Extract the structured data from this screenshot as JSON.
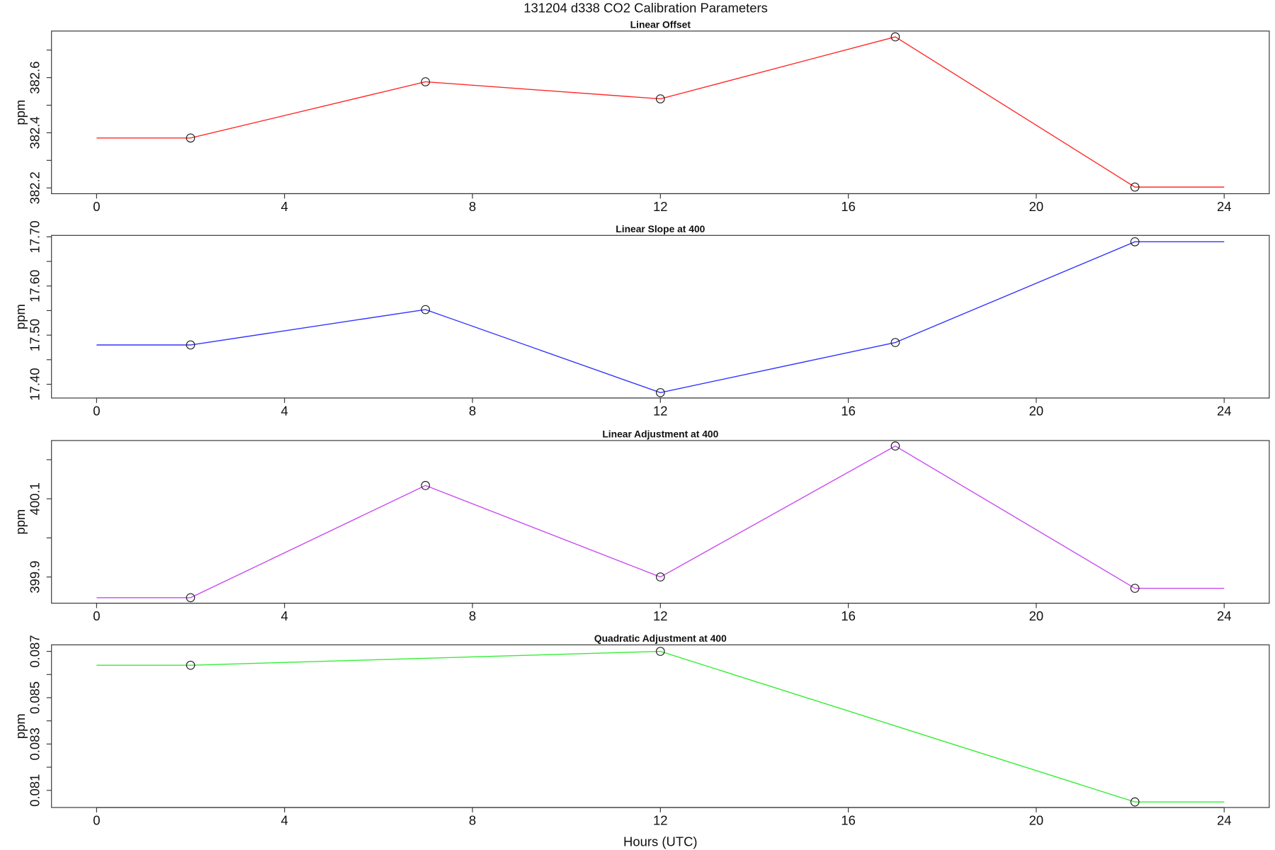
{
  "title": "131204   d338   CO2 Calibration Parameters",
  "chart_data": [
    {
      "type": "line",
      "title": "Linear Offset",
      "ylabel": "ppm",
      "x": [
        0,
        2,
        7,
        12,
        17,
        22.1,
        24
      ],
      "series": [
        {
          "color": "#ff2a2a",
          "values": [
            382.381,
            382.381,
            382.585,
            382.523,
            382.748,
            382.203,
            382.203
          ]
        }
      ],
      "xlim": [
        -0.96,
        24.96
      ],
      "xticks": [
        0,
        4,
        8,
        12,
        16,
        20,
        24
      ],
      "ylim": [
        382.179,
        382.769
      ],
      "yticks": [
        382.2,
        382.4,
        382.6
      ],
      "yminor": [
        382.3,
        382.5,
        382.7
      ]
    },
    {
      "type": "line",
      "title": "Linear Slope at 400",
      "ylabel": "ppm",
      "x": [
        0,
        2,
        7,
        12,
        17,
        22.1,
        24
      ],
      "series": [
        {
          "color": "#3333ff",
          "values": [
            17.48,
            17.48,
            17.552,
            17.383,
            17.485,
            17.69,
            17.69
          ]
        }
      ],
      "xlim": [
        -0.96,
        24.96
      ],
      "xticks": [
        0,
        4,
        8,
        12,
        16,
        20,
        24
      ],
      "ylim": [
        17.372,
        17.703
      ],
      "yticks": [
        {
          "value": 17.4,
          "label": "17.40"
        },
        {
          "value": 17.5,
          "label": "17.50"
        },
        {
          "value": 17.6,
          "label": "17.60"
        },
        {
          "value": 17.7,
          "label": "17.70"
        }
      ],
      "yminor": [
        17.45,
        17.55,
        17.65
      ]
    },
    {
      "type": "line",
      "title": "Linear Adjustment at 400",
      "ylabel": "ppm",
      "x": [
        0,
        2,
        7,
        12,
        17,
        22.1,
        24
      ],
      "series": [
        {
          "color": "#c84cf0",
          "values": [
            399.847,
            399.847,
            400.134,
            399.9,
            400.235,
            399.871,
            399.871
          ]
        }
      ],
      "xlim": [
        -0.96,
        24.96
      ],
      "xticks": [
        0,
        4,
        8,
        12,
        16,
        20,
        24
      ],
      "ylim": [
        399.833,
        400.249
      ],
      "yticks": [
        399.9,
        400.1
      ],
      "yminor": [
        400.0,
        400.2
      ]
    },
    {
      "type": "line",
      "title": "Quadratic Adjustment at 400",
      "ylabel": "ppm",
      "xlabel": "Hours (UTC)",
      "x": [
        0,
        2,
        12,
        22.1,
        24
      ],
      "series": [
        {
          "color": "#33ee33",
          "values": [
            0.0864,
            0.0864,
            0.087,
            0.0805,
            0.0805
          ]
        }
      ],
      "xlim": [
        -0.96,
        24.96
      ],
      "xticks": [
        0,
        4,
        8,
        12,
        16,
        20,
        24
      ],
      "ylim": [
        0.08026,
        0.08728
      ],
      "yticks": [
        0.081,
        0.083,
        0.085,
        0.087
      ],
      "yminor": [
        0.082,
        0.084,
        0.086
      ]
    }
  ]
}
